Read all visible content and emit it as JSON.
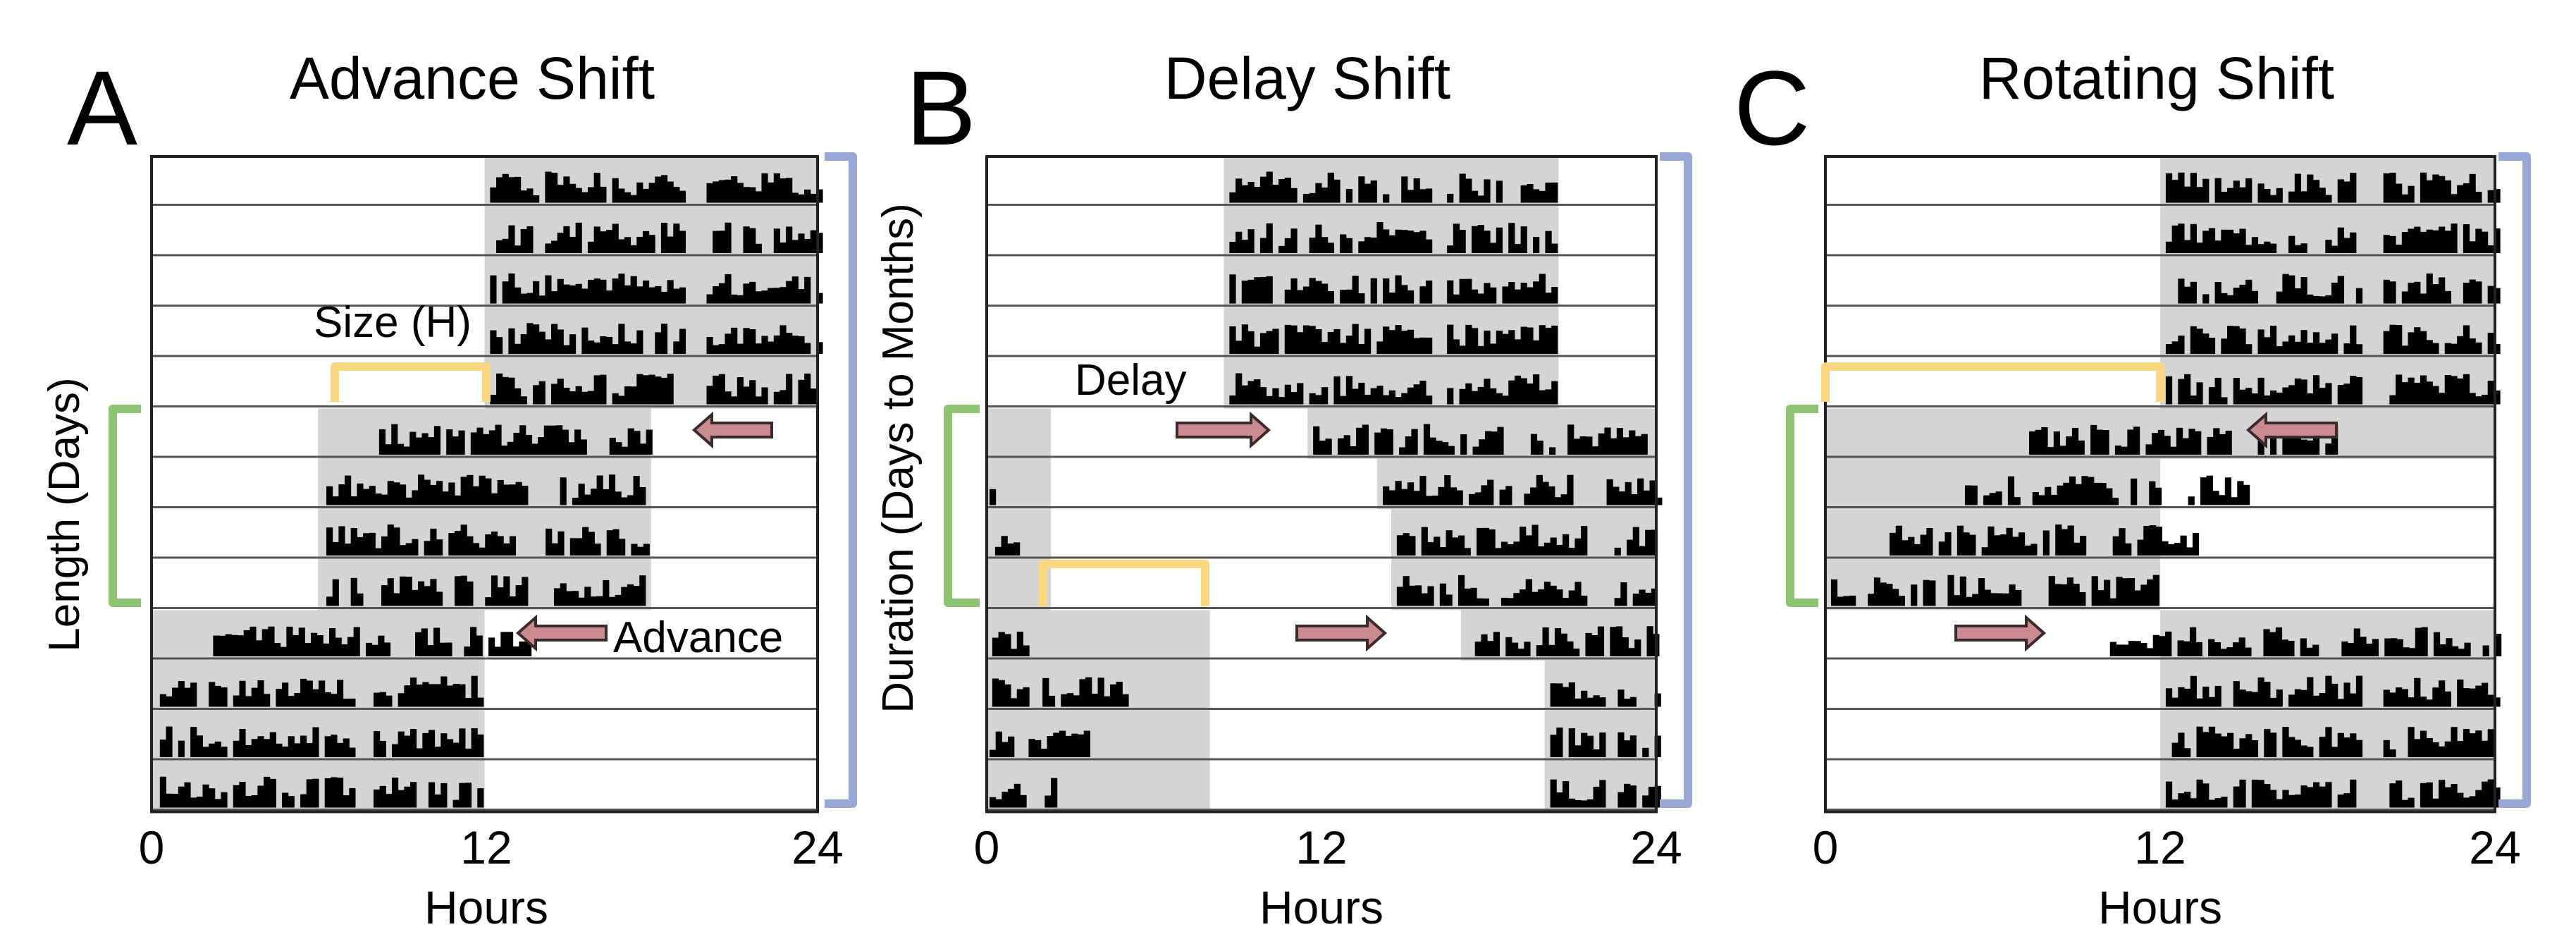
{
  "colors": {
    "frame": "#222222",
    "shade": "#d4d4d4",
    "activity": "#000000",
    "size_bracket": "#fbd77f",
    "length_bracket": "#8cc471",
    "duration_bracket": "#98a8d6",
    "arrow_fill": "#c98b91"
  },
  "axis_labels": {
    "x_unit": "Hours"
  },
  "side_labels": {
    "length": "Length (Days)",
    "duration": "Duration (Days to Months)"
  },
  "panels": [
    {
      "letter": "A",
      "title": "Advance Shift",
      "ticks": [
        "0",
        "12",
        "24"
      ],
      "rows": [
        {
          "shade": [
            [
              12,
              24
            ]
          ],
          "act": [
            [
              12.2,
              19.2
            ],
            [
              20,
              24
            ]
          ]
        },
        {
          "shade": [
            [
              12,
              24
            ]
          ],
          "act": [
            [
              12.2,
              19.2
            ],
            [
              20,
              24
            ]
          ]
        },
        {
          "shade": [
            [
              12,
              24
            ]
          ],
          "act": [
            [
              12.2,
              19.2
            ],
            [
              20,
              24
            ]
          ]
        },
        {
          "shade": [
            [
              12,
              24
            ]
          ],
          "act": [
            [
              12.2,
              19.2
            ],
            [
              20,
              24
            ]
          ]
        },
        {
          "shade": [
            [
              12,
              24
            ]
          ],
          "act": [
            [
              12.2,
              19.2
            ],
            [
              20,
              24
            ]
          ]
        },
        {
          "shade": [
            [
              6,
              18
            ]
          ],
          "act": [
            [
              8.2,
              15.5
            ],
            [
              16.5,
              18
            ]
          ]
        },
        {
          "shade": [
            [
              6,
              18
            ]
          ],
          "act": [
            [
              6.3,
              13.5
            ],
            [
              14.5,
              18
            ]
          ]
        },
        {
          "shade": [
            [
              6,
              18
            ]
          ],
          "act": [
            [
              6.3,
              13.3
            ],
            [
              14.2,
              17.8
            ]
          ]
        },
        {
          "shade": [
            [
              6,
              18
            ]
          ],
          "act": [
            [
              6.3,
              13.5
            ],
            [
              14.5,
              17.8
            ]
          ]
        },
        {
          "shade": [
            [
              0,
              12
            ]
          ],
          "act": [
            [
              2,
              8.5
            ],
            [
              9.5,
              13.5
            ]
          ]
        },
        {
          "shade": [
            [
              0,
              12
            ]
          ],
          "act": [
            [
              0.3,
              7.2
            ],
            [
              8,
              11.8
            ]
          ]
        },
        {
          "shade": [
            [
              0,
              12
            ]
          ],
          "act": [
            [
              0.3,
              7.2
            ],
            [
              8,
              11.8
            ]
          ]
        },
        {
          "shade": [
            [
              0,
              12
            ]
          ],
          "act": [
            [
              0.3,
              7.2
            ],
            [
              8,
              11.8
            ]
          ]
        }
      ],
      "size_label": "Size (H)",
      "shift_label": "Advance"
    },
    {
      "letter": "B",
      "title": "Delay Shift",
      "ticks": [
        "0",
        "12",
        "24"
      ],
      "rows": [
        {
          "shade": [
            [
              8.5,
              20.5
            ]
          ],
          "act": [
            [
              8.7,
              15.8
            ],
            [
              16.5,
              20.3
            ]
          ]
        },
        {
          "shade": [
            [
              8.5,
              20.5
            ]
          ],
          "act": [
            [
              8.7,
              15.8
            ],
            [
              16.5,
              20.3
            ]
          ]
        },
        {
          "shade": [
            [
              8.5,
              20.5
            ]
          ],
          "act": [
            [
              8.7,
              15.8
            ],
            [
              16.5,
              20.3
            ]
          ]
        },
        {
          "shade": [
            [
              8.5,
              20.5
            ]
          ],
          "act": [
            [
              8.7,
              15.8
            ],
            [
              16.5,
              20.3
            ]
          ]
        },
        {
          "shade": [
            [
              8.5,
              20.5
            ]
          ],
          "act": [
            [
              8.7,
              15.8
            ],
            [
              16.5,
              20.3
            ]
          ]
        },
        {
          "shade": [
            [
              0,
              2.3
            ],
            [
              11.5,
              24
            ]
          ],
          "act": [
            [
              11.7,
              18.5
            ],
            [
              19.5,
              23.5
            ]
          ]
        },
        {
          "shade": [
            [
              0,
              2.3
            ],
            [
              14,
              24
            ]
          ],
          "act": [
            [
              0.1,
              0.5
            ],
            [
              14.2,
              21
            ],
            [
              22,
              24
            ]
          ]
        },
        {
          "shade": [
            [
              0,
              2.3
            ],
            [
              14.5,
              24
            ]
          ],
          "act": [
            [
              0.3,
              1.3
            ],
            [
              14.7,
              21.5
            ],
            [
              22.5,
              24
            ]
          ]
        },
        {
          "shade": [
            [
              0,
              2.3
            ],
            [
              14.5,
              24
            ]
          ],
          "act": [
            [
              14.7,
              21.5
            ],
            [
              22.5,
              24
            ]
          ]
        },
        {
          "shade": [
            [
              0,
              8
            ],
            [
              17,
              24
            ]
          ],
          "act": [
            [
              0.2,
              1.5
            ],
            [
              17.5,
              24
            ]
          ]
        },
        {
          "shade": [
            [
              0,
              8
            ],
            [
              20,
              24
            ]
          ],
          "act": [
            [
              0.2,
              1.5
            ],
            [
              2,
              5
            ],
            [
              20.2,
              24
            ]
          ]
        },
        {
          "shade": [
            [
              0,
              8
            ],
            [
              20,
              24
            ]
          ],
          "act": [
            [
              0.1,
              1
            ],
            [
              1.5,
              3.5
            ],
            [
              20.2,
              24
            ]
          ]
        },
        {
          "shade": [
            [
              0,
              8
            ],
            [
              20,
              24
            ]
          ],
          "act": [
            [
              0.1,
              2.5
            ],
            [
              20.2,
              24
            ]
          ]
        }
      ],
      "shift_label": "Delay"
    },
    {
      "letter": "C",
      "title": "Rotating Shift",
      "ticks": [
        "0",
        "12",
        "24"
      ],
      "rows": [
        {
          "shade": [
            [
              12,
              24
            ]
          ],
          "act": [
            [
              12.2,
              19.2
            ],
            [
              20,
              24
            ]
          ]
        },
        {
          "shade": [
            [
              12,
              24
            ]
          ],
          "act": [
            [
              12.2,
              19.2
            ],
            [
              20,
              24
            ]
          ]
        },
        {
          "shade": [
            [
              12,
              24
            ]
          ],
          "act": [
            [
              12.2,
              19.2
            ],
            [
              20,
              24
            ]
          ]
        },
        {
          "shade": [
            [
              12,
              24
            ]
          ],
          "act": [
            [
              12.2,
              19.2
            ],
            [
              20,
              24
            ]
          ]
        },
        {
          "shade": [
            [
              12,
              24
            ]
          ],
          "act": [
            [
              12.2,
              19.2
            ],
            [
              20,
              24
            ]
          ]
        },
        {
          "shade": [
            [
              0,
              24
            ]
          ],
          "act": [
            [
              7.3,
              14.5
            ],
            [
              15.5,
              18.5
            ]
          ]
        },
        {
          "shade": [
            [
              0,
              12
            ]
          ],
          "act": [
            [
              5,
              12
            ],
            [
              13,
              15
            ]
          ]
        },
        {
          "shade": [
            [
              0,
              12
            ]
          ],
          "act": [
            [
              2.3,
              9.5
            ],
            [
              10.3,
              13.5
            ]
          ]
        },
        {
          "shade": [
            [
              0,
              12
            ]
          ],
          "act": [
            [
              0.2,
              7
            ],
            [
              8,
              11.8
            ]
          ]
        },
        {
          "shade": [
            [
              12,
              24
            ]
          ],
          "act": [
            [
              10.2,
              17.5
            ],
            [
              18.5,
              24
            ]
          ]
        },
        {
          "shade": [
            [
              12,
              24
            ]
          ],
          "act": [
            [
              12.2,
              19.2
            ],
            [
              20,
              24
            ]
          ]
        },
        {
          "shade": [
            [
              12,
              24
            ]
          ],
          "act": [
            [
              12.2,
              19.2
            ],
            [
              20,
              24
            ]
          ]
        },
        {
          "shade": [
            [
              12,
              24
            ]
          ],
          "act": [
            [
              12.2,
              19.2
            ],
            [
              20,
              24
            ]
          ]
        }
      ]
    }
  ]
}
